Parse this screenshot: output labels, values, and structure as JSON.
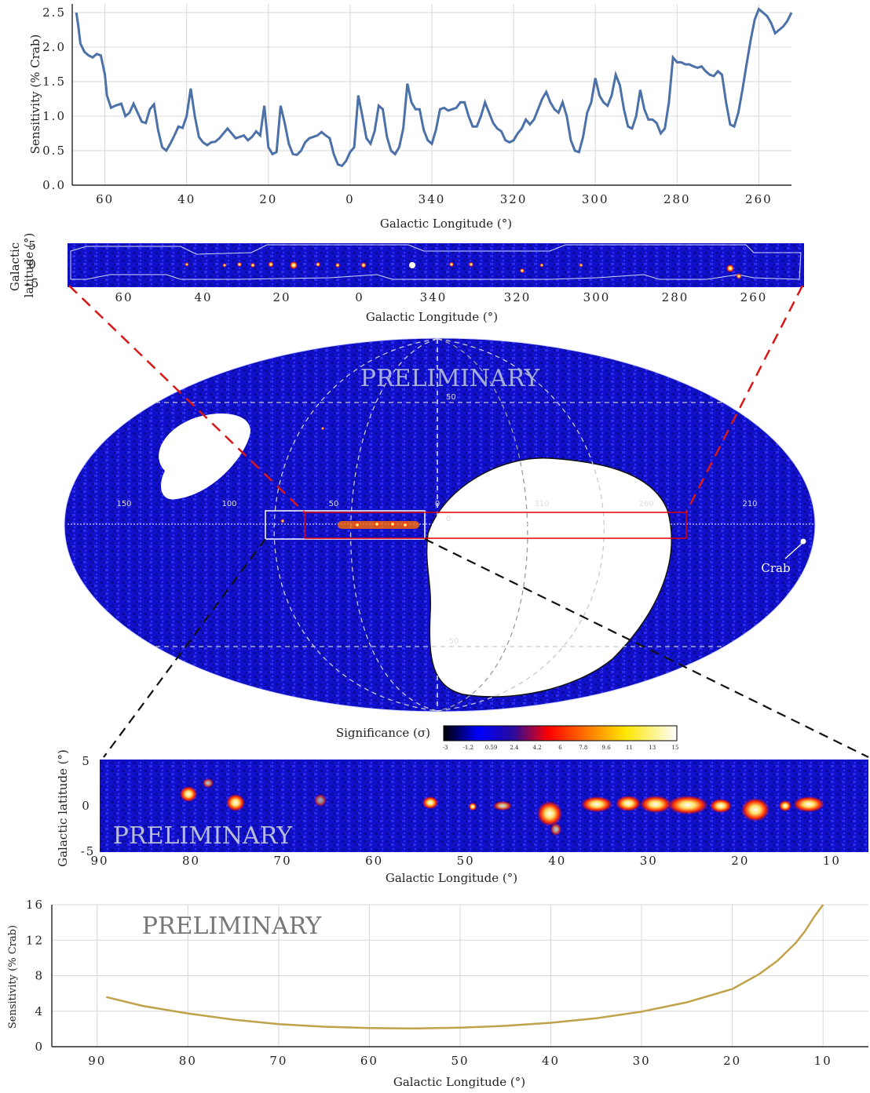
{
  "chart_data": [
    {
      "type": "line",
      "ylabel": "Sensitivity (% Crab)",
      "xlabel": "Galactic Longitude (°)",
      "xticks": [
        "60",
        "40",
        "20",
        "0",
        "340",
        "320",
        "300",
        "280",
        "260"
      ],
      "yticks": [
        "0.0",
        "0.5",
        "1.0",
        "1.5",
        "2.0",
        "2.5"
      ],
      "xlim_wrapped": [
        68,
        252
      ],
      "ylim": [
        0,
        2.5
      ],
      "grid": true,
      "color": "#4c70a8",
      "x": [
        67,
        66.5,
        66,
        65,
        64,
        63,
        62,
        61,
        60,
        59.5,
        58.5,
        57.5,
        56,
        55,
        54,
        53,
        52,
        51,
        50,
        49,
        48,
        47,
        46,
        45,
        44,
        43,
        42,
        41,
        40,
        39,
        38,
        37,
        36,
        35,
        34,
        33,
        32,
        31,
        30,
        29,
        28,
        27,
        26,
        25,
        24,
        23,
        22,
        21,
        20,
        19,
        18,
        17,
        16,
        15,
        14,
        13,
        12,
        11,
        10,
        9,
        8,
        7,
        6,
        5,
        4,
        3,
        2,
        1,
        0,
        -1,
        -2,
        -3,
        -4,
        -5,
        -6,
        -7,
        -8,
        -9,
        -10,
        -11,
        -12,
        -13,
        -14,
        -15,
        -16,
        -17,
        -18,
        -19,
        -20,
        -21,
        -22,
        -23,
        -24,
        -25,
        -26,
        -27,
        -28,
        -29,
        -30,
        -31,
        -32,
        -33,
        -34,
        -35,
        -36,
        -37,
        -38,
        -39,
        -40,
        -41,
        -42,
        -43,
        -44,
        -45,
        -46,
        -47,
        -48,
        -49,
        -50,
        -51,
        -52,
        -53,
        -54,
        -55,
        -56,
        -57,
        -58,
        -59,
        -60,
        -61,
        -62,
        -63,
        -64,
        -65,
        -66,
        -67,
        -68,
        -69,
        -70,
        -71,
        -72,
        -73,
        -74,
        -75,
        -76,
        -77,
        -78,
        -79,
        -80,
        -81,
        -82,
        -83,
        -84,
        -85,
        -86,
        -87,
        -88,
        -89,
        -90,
        -91,
        -92,
        -93,
        -94,
        -95,
        -96,
        -97,
        -98,
        -99,
        -100,
        -101,
        -102,
        -103,
        -104,
        -105,
        -106,
        -107,
        -108
      ],
      "y": [
        2.5,
        2.3,
        2.05,
        1.93,
        1.88,
        1.85,
        1.9,
        1.88,
        1.6,
        1.3,
        1.12,
        1.15,
        1.18,
        1.0,
        1.05,
        1.18,
        1.05,
        0.92,
        0.9,
        1.1,
        1.17,
        0.8,
        0.55,
        0.5,
        0.6,
        0.72,
        0.85,
        0.83,
        1.0,
        1.4,
        1.0,
        0.7,
        0.62,
        0.58,
        0.62,
        0.63,
        0.68,
        0.75,
        0.82,
        0.75,
        0.68,
        0.7,
        0.72,
        0.65,
        0.7,
        0.78,
        0.72,
        1.15,
        0.55,
        0.45,
        0.48,
        1.15,
        0.9,
        0.6,
        0.45,
        0.44,
        0.5,
        0.62,
        0.68,
        0.7,
        0.72,
        0.77,
        0.72,
        0.68,
        0.45,
        0.3,
        0.28,
        0.35,
        0.48,
        0.55,
        1.3,
        1.0,
        0.68,
        0.6,
        0.78,
        1.15,
        1.1,
        0.7,
        0.5,
        0.45,
        0.55,
        0.82,
        1.47,
        1.2,
        1.1,
        1.1,
        0.8,
        0.65,
        0.6,
        0.8,
        1.1,
        1.12,
        1.08,
        1.1,
        1.12,
        1.2,
        1.2,
        1.0,
        0.85,
        0.85,
        1.0,
        1.2,
        1.05,
        0.9,
        0.82,
        0.78,
        0.65,
        0.62,
        0.65,
        0.75,
        0.82,
        0.95,
        0.88,
        0.95,
        1.1,
        1.25,
        1.35,
        1.2,
        1.1,
        1.05,
        1.2,
        1.0,
        0.65,
        0.5,
        0.48,
        0.7,
        1.05,
        1.2,
        1.55,
        1.3,
        1.2,
        1.15,
        1.3,
        1.6,
        1.45,
        1.1,
        0.85,
        0.82,
        1.0,
        1.38,
        1.1,
        0.95,
        0.95,
        0.9,
        0.75,
        0.82,
        1.2,
        1.85,
        1.78,
        1.78,
        1.75,
        1.75,
        1.72,
        1.7,
        1.72,
        1.65,
        1.6,
        1.58,
        1.65,
        1.6,
        1.2,
        0.88,
        0.85,
        1.05,
        1.38,
        1.75,
        2.1,
        2.4,
        2.55,
        2.5,
        2.45,
        2.35,
        2.2,
        2.25,
        2.3,
        2.38,
        2.5
      ]
    },
    {
      "type": "heatmap",
      "xlabel": "Galactic Longitude (°)",
      "ylabel": "Galactic latitude (°)",
      "xticks": [
        "60",
        "40",
        "20",
        "0",
        "340",
        "320",
        "300",
        "280",
        "260"
      ],
      "yticks": [
        "5",
        "0",
        "-5"
      ]
    },
    {
      "type": "heatmap",
      "projection": "all-sky",
      "watermark": "PRELIMINARY",
      "grid_labels": [
        "150",
        "100",
        "50",
        "0",
        "310",
        "260",
        "210",
        "50",
        "-50",
        "0"
      ],
      "annotation": "Crab",
      "colorbar_label": "Significance (σ)",
      "colorbar_ticks": [
        "-3",
        "-1.2",
        "0.59",
        "2.4",
        "4.2",
        "6",
        "7.8",
        "9.6",
        "11",
        "13",
        "15"
      ]
    },
    {
      "type": "heatmap",
      "watermark": "PRELIMINARY",
      "xlabel": "Galactic Longitude (°)",
      "ylabel": "Galactic latitude (°)",
      "xticks": [
        "90",
        "80",
        "70",
        "60",
        "50",
        "40",
        "30",
        "20",
        "10"
      ],
      "yticks": [
        "5",
        "0",
        "-5"
      ],
      "xlim": [
        90,
        6
      ],
      "ylim": [
        -5,
        5
      ]
    },
    {
      "type": "line",
      "watermark": "PRELIMINARY",
      "ylabel": "Sensitivity (% Crab)",
      "xlabel": "Galactic Longitude (°)",
      "xticks": [
        "90",
        "80",
        "70",
        "60",
        "50",
        "40",
        "30",
        "20",
        "10"
      ],
      "yticks": [
        "0",
        "4",
        "8",
        "12",
        "16"
      ],
      "xlim": [
        95,
        5
      ],
      "ylim": [
        0,
        16
      ],
      "grid": true,
      "color": "#bfa24a",
      "x": [
        89,
        85,
        80,
        75,
        70,
        65,
        60,
        55,
        50,
        45,
        40,
        35,
        30,
        25,
        20,
        17,
        15,
        13,
        12,
        11,
        10
      ],
      "y": [
        5.6,
        4.6,
        3.75,
        3.05,
        2.55,
        2.25,
        2.1,
        2.05,
        2.15,
        2.35,
        2.7,
        3.2,
        3.95,
        5.0,
        6.5,
        8.2,
        9.7,
        11.7,
        13.0,
        14.6,
        16.0
      ]
    }
  ]
}
